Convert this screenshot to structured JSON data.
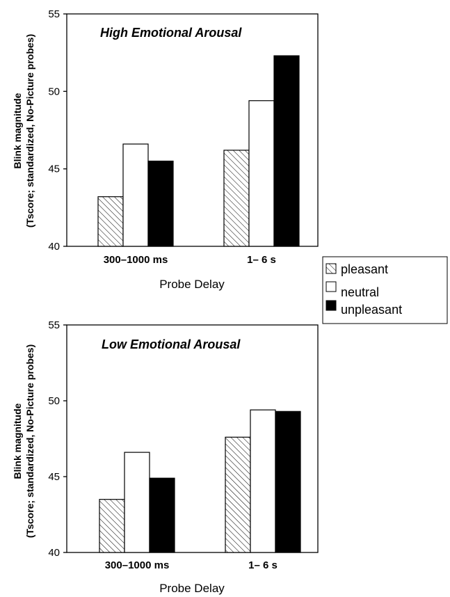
{
  "chart_data": [
    {
      "type": "bar",
      "title": "High Emotional Arousal",
      "xlabel": "Probe Delay",
      "ylabel_line1": "Blink magnitude",
      "ylabel_line2": "(Tscore; standardized, No-Picture probes)",
      "categories": [
        "300–1000 ms",
        "1– 6 s"
      ],
      "yticks": [
        "40",
        "45",
        "50",
        "55"
      ],
      "ylim": [
        40,
        55
      ],
      "series": [
        {
          "name": "pleasant",
          "values": [
            43.2,
            46.2
          ]
        },
        {
          "name": "neutral",
          "values": [
            46.6,
            49.4
          ]
        },
        {
          "name": "unpleasant",
          "values": [
            45.5,
            52.3
          ]
        }
      ]
    },
    {
      "type": "bar",
      "title": "Low Emotional Arousal",
      "xlabel": "Probe Delay",
      "ylabel_line1": "Blink magnitude",
      "ylabel_line2": "(Tscore; standardized, No-Picture probes)",
      "categories": [
        "300–1000 ms",
        "1– 6 s"
      ],
      "yticks": [
        "40",
        "45",
        "50",
        "55"
      ],
      "ylim": [
        40,
        55
      ],
      "series": [
        {
          "name": "pleasant",
          "values": [
            43.5,
            47.6
          ]
        },
        {
          "name": "neutral",
          "values": [
            46.6,
            49.4
          ]
        },
        {
          "name": "unpleasant",
          "values": [
            44.9,
            49.3
          ]
        }
      ]
    }
  ],
  "legend": {
    "placement": "right, between panels",
    "items": [
      {
        "label": "pleasant",
        "fill": "hatched"
      },
      {
        "label": "neutral",
        "fill": "#ffffff"
      },
      {
        "label": "unpleasant",
        "fill": "#000000"
      }
    ]
  }
}
